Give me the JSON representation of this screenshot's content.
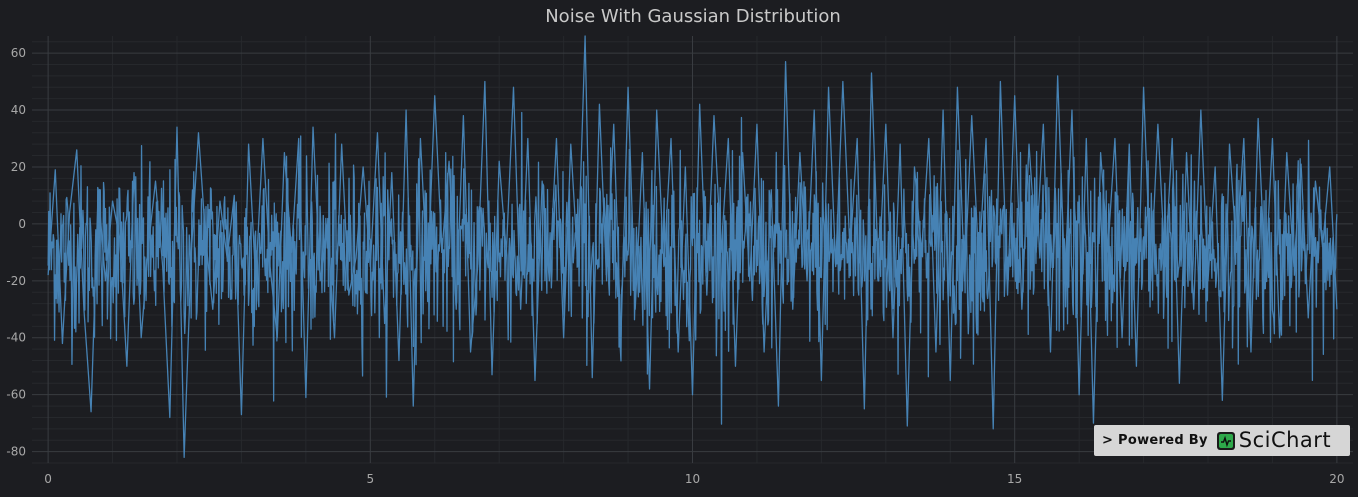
{
  "chart_data": {
    "type": "line",
    "title": "Noise With Gaussian Distribution",
    "xlabel": "",
    "ylabel": "",
    "xlim": [
      -0.25,
      20.25
    ],
    "ylim": [
      -84,
      66
    ],
    "x_ticks": [
      0,
      5,
      10,
      15,
      20
    ],
    "x_tick_labels": [
      "0",
      "5",
      "10",
      "15",
      "20"
    ],
    "y_ticks": [
      -80,
      -60,
      -40,
      -20,
      0,
      20,
      40,
      60
    ],
    "y_tick_labels": [
      "-80",
      "-60",
      "-40",
      "-20",
      "0",
      "20",
      "40",
      "60"
    ],
    "grid": true,
    "legend": "none",
    "series": [
      {
        "color": "#4682b4",
        "x_start": 0,
        "x_step": 0.01,
        "distribution": "gaussian",
        "mean": -10,
        "std": 15,
        "num_points": 2001,
        "sampled_values": [
          -18,
          19,
          -42,
          4,
          26,
          -30,
          -66,
          12,
          -20,
          8,
          -5,
          -50,
          18,
          -40,
          -8,
          15,
          -15,
          -68,
          34,
          -82,
          -10,
          32,
          -5,
          -30,
          8,
          -12,
          10,
          -67,
          28,
          -20,
          30,
          -15,
          -40,
          25,
          -10,
          30,
          -61,
          34,
          -20,
          0,
          -40,
          28,
          -25,
          -12,
          20,
          -15,
          32,
          -35,
          18,
          -48,
          40,
          -64,
          30,
          -20,
          45,
          -10,
          22,
          -30,
          38,
          -45,
          -15,
          50,
          -53,
          22,
          -10,
          48,
          -30,
          30,
          -55,
          15,
          -20,
          30,
          -40,
          28,
          -15,
          66,
          -54,
          42,
          -20,
          35,
          -40,
          48,
          -30,
          25,
          -58,
          40,
          -15,
          30,
          -45,
          20,
          -60,
          42,
          -25,
          38,
          -10,
          30,
          -50,
          25,
          -20,
          35,
          -45,
          12,
          -64,
          57,
          -30,
          25,
          -20,
          40,
          -55,
          48,
          -15,
          50,
          -10,
          30,
          -65,
          53,
          -20,
          35,
          -40,
          28,
          -71,
          20,
          -10,
          30,
          -45,
          40,
          -55,
          48,
          -20,
          38,
          -15,
          30,
          -72,
          50,
          -25,
          45,
          -30,
          28,
          -10,
          35,
          -45,
          52,
          -20,
          40,
          -60,
          30,
          -70,
          25,
          -10,
          30,
          -40,
          28,
          -50,
          48,
          -20,
          35,
          -15,
          30,
          -56,
          25,
          -30,
          40,
          -20,
          20,
          -62,
          28,
          -10,
          30,
          -45,
          37,
          -20,
          30,
          -40,
          25,
          -15,
          21,
          -33,
          15,
          -8,
          20,
          -30
        ]
      }
    ]
  },
  "watermark": {
    "text": "> Powered By",
    "logo_text": "SciChart"
  },
  "colors": {
    "background": "#1c1d21",
    "plot_background": "#1c1d21",
    "grid_major": "#393c41",
    "grid_minor": "#26282c",
    "series": "#4682b4",
    "title": "#c9c9c9",
    "tick_label": "#a8a8a8",
    "watermark_bg": "#d6d6d6",
    "logo_green": "#2ea84a"
  }
}
